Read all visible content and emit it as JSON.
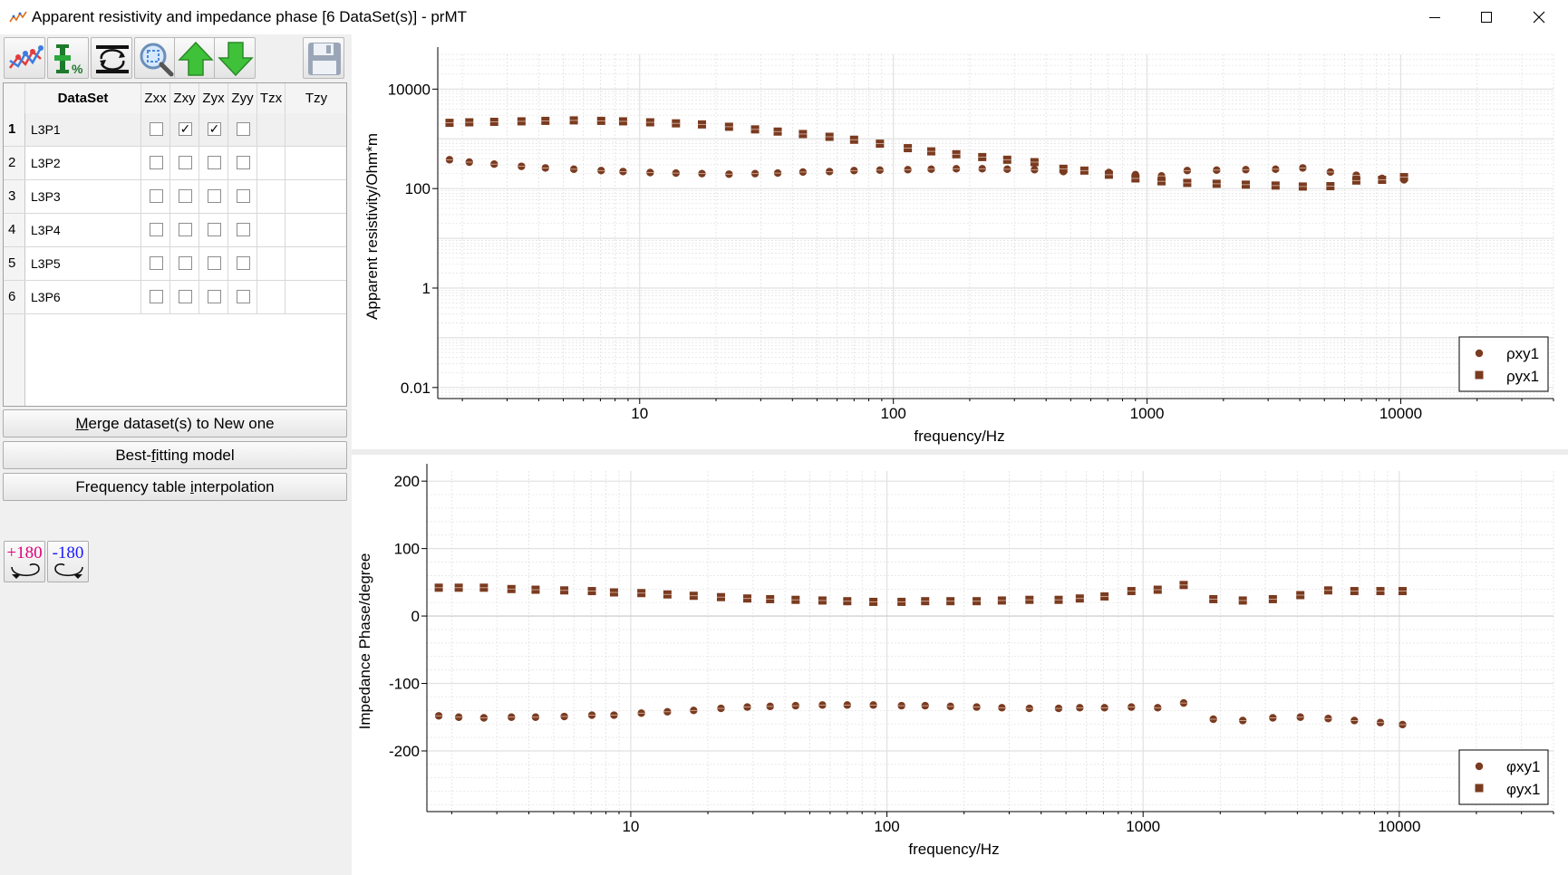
{
  "window": {
    "title": "Apparent resistivity and impedance phase [6 DataSet(s)] - prMT",
    "min_icon": "minimize-icon",
    "max_icon": "maximize-icon",
    "close_icon": "close-icon"
  },
  "toolbar": {
    "buttons": [
      "plot-curve-icon",
      "error-percent-icon",
      "swap-icon",
      "zoom-icon",
      "up-arrow-icon",
      "down-arrow-icon",
      "save-icon"
    ]
  },
  "table": {
    "headers": [
      "DataSet",
      "Zxx",
      "Zxy",
      "Zyx",
      "Zyy",
      "Tzx",
      "Tzy"
    ],
    "rows": [
      {
        "num": "1",
        "name": "L3P1",
        "checks": [
          false,
          true,
          true,
          false
        ],
        "selected": true
      },
      {
        "num": "2",
        "name": "L3P2",
        "checks": [
          false,
          false,
          false,
          false
        ],
        "selected": false
      },
      {
        "num": "3",
        "name": "L3P3",
        "checks": [
          false,
          false,
          false,
          false
        ],
        "selected": false
      },
      {
        "num": "4",
        "name": "L3P4",
        "checks": [
          false,
          false,
          false,
          false
        ],
        "selected": false
      },
      {
        "num": "5",
        "name": "L3P5",
        "checks": [
          false,
          false,
          false,
          false
        ],
        "selected": false
      },
      {
        "num": "6",
        "name": "L3P6",
        "checks": [
          false,
          false,
          false,
          false
        ],
        "selected": false
      }
    ],
    "check_mark": "✓"
  },
  "buttons": {
    "merge_pre": "M",
    "merge_rest": "erge dataset(s) to New one",
    "best_pre": "Best-",
    "best_u": "f",
    "best_rest": "itting model",
    "freq_pre": "Frequency table ",
    "freq_u": "i",
    "freq_rest": "nterpolation",
    "rot_plus": "+180",
    "rot_minus": "-180"
  },
  "colors": {
    "marker": "#7a3b20",
    "grid": "#e1e1e1",
    "rot_plus": "#e0007a",
    "rot_minus": "#1a1aff"
  },
  "chart_data": [
    {
      "type": "scatter",
      "title": "",
      "xlabel": "frequency/Hz",
      "ylabel": "Apparent resistivity/Ohm*m",
      "xscale": "log",
      "yscale": "log",
      "xlim": [
        1.6,
        40000
      ],
      "ylim": [
        0.006,
        50000
      ],
      "xticks": [
        "10",
        "100",
        "1000",
        "10000"
      ],
      "yticks": [
        "0.01",
        "1",
        "100",
        "10000"
      ],
      "grid": true,
      "legend_position": "bottom-right",
      "x": [
        1.78,
        2.13,
        2.67,
        3.42,
        4.25,
        5.5,
        7.05,
        8.6,
        11,
        13.9,
        17.6,
        22.5,
        28.5,
        35,
        44,
        56,
        70,
        88.5,
        114,
        141,
        177,
        224,
        281,
        360,
        468,
        566,
        707,
        900,
        1140,
        1440,
        1880,
        2450,
        3210,
        4110,
        5280,
        6680,
        8440,
        10300
      ],
      "series": [
        {
          "name": "ρxy1",
          "marker": "circle",
          "values": [
            380,
            340,
            310,
            280,
            260,
            245,
            230,
            220,
            210,
            205,
            200,
            195,
            200,
            205,
            215,
            220,
            230,
            235,
            240,
            245,
            250,
            250,
            245,
            240,
            220,
            230,
            210,
            190,
            180,
            230,
            235,
            240,
            245,
            260,
            215,
            185,
            160,
            150
          ]
        },
        {
          "name": "ρyx1",
          "marker": "square",
          "values": [
            2100,
            2150,
            2200,
            2250,
            2300,
            2350,
            2300,
            2250,
            2150,
            2050,
            1950,
            1750,
            1550,
            1400,
            1250,
            1100,
            960,
            800,
            650,
            560,
            490,
            430,
            380,
            340,
            250,
            230,
            190,
            160,
            140,
            130,
            125,
            120,
            115,
            110,
            112,
            145,
            150,
            170
          ]
        }
      ]
    },
    {
      "type": "scatter",
      "title": "",
      "xlabel": "frequency/Hz",
      "ylabel": "Impedance Phase/degree",
      "xscale": "log",
      "xlim": [
        1.6,
        40000
      ],
      "ylim": [
        -290,
        215
      ],
      "xticks": [
        "10",
        "100",
        "1000",
        "10000"
      ],
      "yticks": [
        "200",
        "100",
        "0",
        "-100",
        "-200"
      ],
      "grid": true,
      "legend_position": "bottom-right",
      "x": [
        1.78,
        2.13,
        2.67,
        3.42,
        4.25,
        5.5,
        7.05,
        8.6,
        11,
        13.9,
        17.6,
        22.5,
        28.5,
        35,
        44,
        56,
        70,
        88.5,
        114,
        141,
        177,
        224,
        281,
        360,
        468,
        566,
        707,
        900,
        1140,
        1440,
        1880,
        2450,
        3210,
        4110,
        5280,
        6680,
        8440,
        10300
      ],
      "series": [
        {
          "name": "φxy1",
          "marker": "circle",
          "values": [
            -148,
            -150,
            -151,
            -150,
            -150,
            -149,
            -147,
            -147,
            -144,
            -142,
            -140,
            -137,
            -135,
            -134,
            -133,
            -132,
            -132,
            -132,
            -133,
            -133,
            -134,
            -135,
            -136,
            -137,
            -137,
            -136,
            -136,
            -135,
            -136,
            -129,
            -153,
            -155,
            -151,
            -150,
            -152,
            -155,
            -158,
            -161
          ]
        },
        {
          "name": "φyx1",
          "marker": "square",
          "values": [
            42,
            42,
            42,
            40,
            39,
            38,
            37,
            35,
            34,
            32,
            30,
            28,
            26,
            25,
            24,
            23,
            22,
            21,
            21,
            22,
            22,
            22,
            23,
            24,
            24,
            26,
            29,
            37,
            39,
            46,
            25,
            23,
            25,
            31,
            38,
            37,
            37,
            37
          ]
        }
      ]
    }
  ]
}
